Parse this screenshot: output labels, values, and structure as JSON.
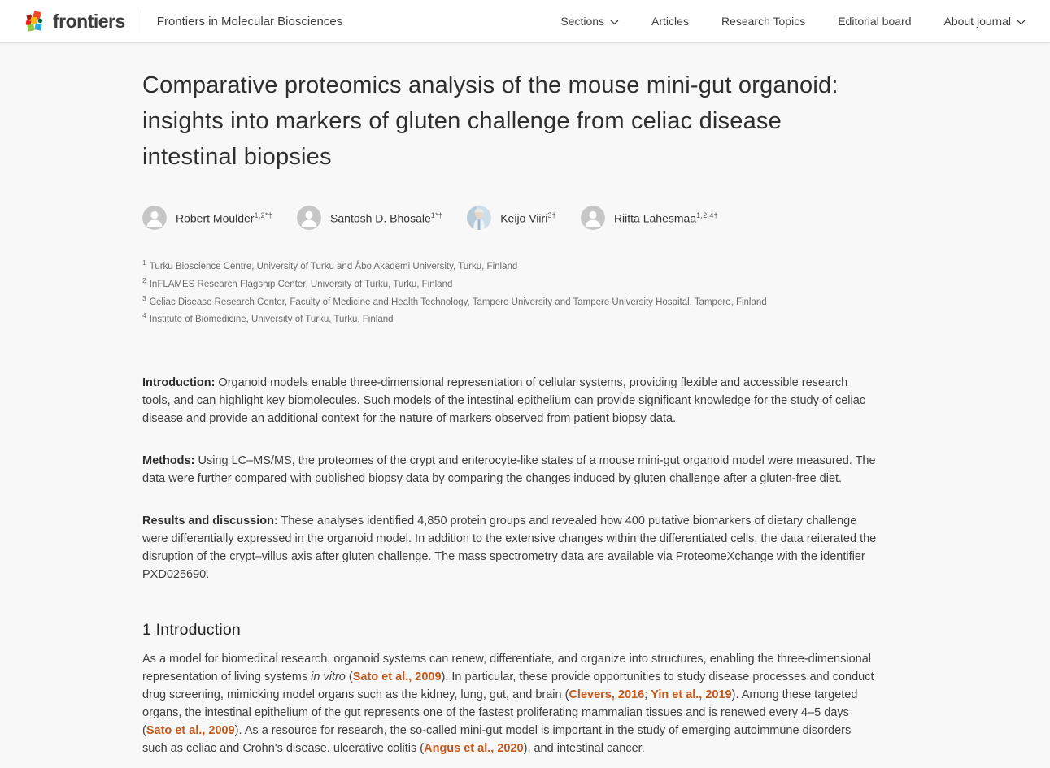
{
  "colors": {
    "link_accent": "#c2581c",
    "header_background": "#ffffff",
    "page_background": "#f8f8f8",
    "title_text": "#2e2e2e",
    "body_text": "#3e3e3e",
    "avatar_gray": "#c6c6c6"
  },
  "header": {
    "logo_text": "frontiers",
    "journal_name": "Frontiers in Molecular Biosciences",
    "nav": [
      {
        "label": "Sections",
        "has_dropdown": true
      },
      {
        "label": "Articles",
        "has_dropdown": false
      },
      {
        "label": "Research Topics",
        "has_dropdown": false
      },
      {
        "label": "Editorial board",
        "has_dropdown": false
      },
      {
        "label": "About journal",
        "has_dropdown": true
      }
    ]
  },
  "article": {
    "title": "Comparative proteomics analysis of the mouse mini-gut organoid: insights into markers of gluten challenge from celiac disease intestinal biopsies",
    "authors": [
      {
        "name": "Robert Moulder",
        "sup": "1,2*†"
      },
      {
        "name": "Santosh D. Bhosale",
        "sup": "1*†"
      },
      {
        "name": "Keijo Viiri",
        "sup": "3†"
      },
      {
        "name": "Riitta Lahesmaa",
        "sup": "1,2,4†"
      }
    ],
    "affiliations": [
      {
        "num": "1",
        "text": "Turku Bioscience Centre, University of Turku and Åbo Akademi University, Turku, Finland"
      },
      {
        "num": "2",
        "text": "InFLAMES Research Flagship Center, University of Turku, Turku, Finland"
      },
      {
        "num": "3",
        "text": "Celiac Disease Research Center, Faculty of Medicine and Health Technology, Tampere University and Tampere University Hospital, Tampere, Finland"
      },
      {
        "num": "4",
        "text": "Institute of Biomedicine, University of Turku, Turku, Finland"
      }
    ],
    "abstract": [
      {
        "label": "Introduction:",
        "text": " Organoid models enable three-dimensional representation of cellular systems, providing flexible and accessible research tools, and can highlight key biomolecules. Such models of the intestinal epithelium can provide significant knowledge for the study of celiac disease and provide an additional context for the nature of markers observed from patient biopsy data."
      },
      {
        "label": "Methods:",
        "text": " Using LC–MS/MS, the proteomes of the crypt and enterocyte-like states of a mouse mini-gut organoid model were measured. The data were further compared with published biopsy data by comparing the changes induced by gluten challenge after a gluten-free diet."
      },
      {
        "label": "Results and discussion:",
        "text": " These analyses identified 4,850 protein groups and revealed how 400 putative biomarkers of dietary challenge were differentially expressed in the organoid model. In addition to the extensive changes within the differentiated cells, the data reiterated the disruption of the crypt–villus axis after gluten challenge. The mass spectrometry data are available via ProteomeXchange with the identifier PXD025690."
      }
    ],
    "section_heading": "1 Introduction",
    "intro_paragraph": [
      {
        "t": "text",
        "v": "As a model for biomedical research, organoid systems can renew, differentiate, and organize into structures, enabling the three-dimensional representation of living systems "
      },
      {
        "t": "italic",
        "v": "in vitro"
      },
      {
        "t": "text",
        "v": " ("
      },
      {
        "t": "link",
        "v": "Sato et al., 2009"
      },
      {
        "t": "text",
        "v": "). In particular, these provide opportunities to study disease processes and conduct drug screening, mimicking model organs such as the kidney, lung, gut, and brain ("
      },
      {
        "t": "link",
        "v": "Clevers, 2016"
      },
      {
        "t": "text",
        "v": "; "
      },
      {
        "t": "link",
        "v": "Yin et al., 2019"
      },
      {
        "t": "text",
        "v": "). Among these targeted organs, the intestinal epithelium of the gut represents one of the fastest proliferating mammalian tissues and is renewed every 4–5 days ("
      },
      {
        "t": "link",
        "v": "Sato et al., 2009"
      },
      {
        "t": "text",
        "v": "). As a resource for research, the so-called mini-gut model is important in the study of emerging autoimmune disorders such as celiac and Crohn's disease, ulcerative colitis ("
      },
      {
        "t": "link",
        "v": "Angus et al., 2020"
      },
      {
        "t": "text",
        "v": "), and intestinal cancer."
      }
    ]
  }
}
